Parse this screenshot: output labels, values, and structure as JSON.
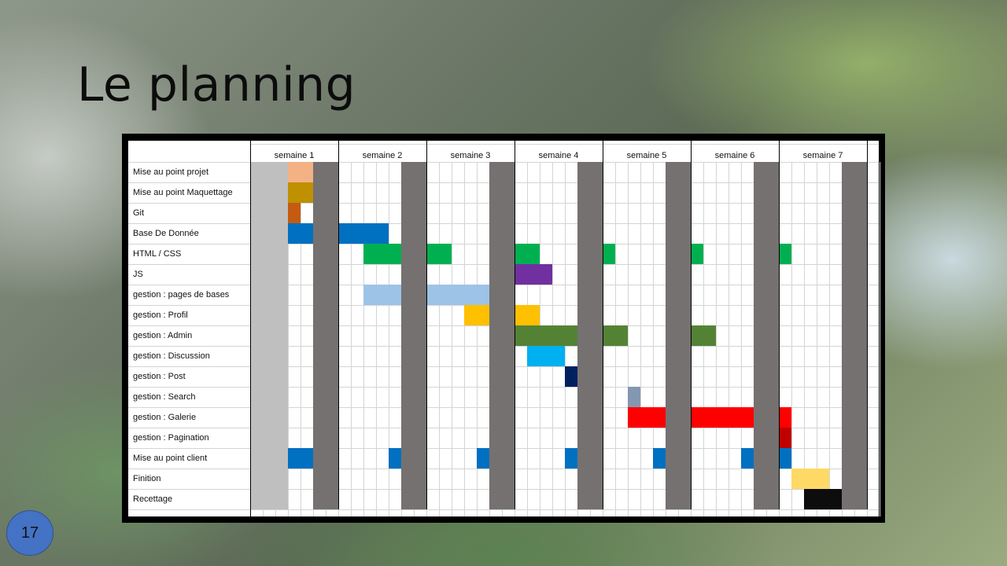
{
  "slide": {
    "title": "Le planning",
    "page_number": "17"
  },
  "chart_data": {
    "type": "gantt",
    "title": "Le planning",
    "unit": "day",
    "days_per_week": 7,
    "weeks": [
      "semaine 1",
      "semaine 2",
      "semaine 3",
      "semaine 4",
      "semaine 5",
      "semaine 6",
      "semaine 7"
    ],
    "weekend_days": [
      5,
      6
    ],
    "pre_project_days": [
      0,
      1,
      2
    ],
    "colors": {
      "weekend": "#757171",
      "pre_project": "#bfbfbf",
      "grid": "#d4d4d4"
    },
    "tasks": [
      {
        "name": "Mise au point projet",
        "color": "#f4b183",
        "segments": [
          [
            3,
            4
          ]
        ]
      },
      {
        "name": "Mise au point Maquettage",
        "color": "#bf9000",
        "segments": [
          [
            3,
            4
          ]
        ]
      },
      {
        "name": "Git",
        "color": "#c55a11",
        "segments": [
          [
            3,
            3
          ]
        ]
      },
      {
        "name": "Base De Donnée",
        "color": "#0070c0",
        "segments": [
          [
            3,
            4
          ],
          [
            7,
            10
          ]
        ]
      },
      {
        "name": "HTML / CSS",
        "color": "#00b050",
        "segments": [
          [
            9,
            11
          ],
          [
            14,
            15
          ],
          [
            21,
            22
          ],
          [
            28,
            28
          ],
          [
            35,
            35
          ],
          [
            42,
            42
          ]
        ]
      },
      {
        "name": "JS",
        "color": "#7030a0",
        "segments": [
          [
            21,
            23
          ]
        ]
      },
      {
        "name": "gestion  : pages de bases",
        "color": "#9dc3e6",
        "segments": [
          [
            9,
            11
          ],
          [
            14,
            18
          ]
        ]
      },
      {
        "name": "gestion  : Profil",
        "color": "#ffc000",
        "segments": [
          [
            17,
            18
          ],
          [
            21,
            22
          ]
        ]
      },
      {
        "name": "gestion  : Admin",
        "color": "#548235",
        "segments": [
          [
            21,
            25
          ],
          [
            28,
            29
          ],
          [
            35,
            36
          ]
        ]
      },
      {
        "name": "gestion  : Discussion",
        "color": "#00b0f0",
        "segments": [
          [
            22,
            24
          ]
        ]
      },
      {
        "name": "gestion  : Post",
        "color": "#002060",
        "segments": [
          [
            25,
            25
          ]
        ]
      },
      {
        "name": "gestion  : Search",
        "color": "#8497b0",
        "segments": [
          [
            30,
            30
          ]
        ]
      },
      {
        "name": "gestion  : Galerie",
        "color": "#ff0000",
        "segments": [
          [
            30,
            32
          ],
          [
            35,
            39
          ],
          [
            42,
            42
          ]
        ]
      },
      {
        "name": "gestion  : Pagination",
        "color": "#c00000",
        "segments": [
          [
            42,
            42
          ]
        ]
      },
      {
        "name": "Mise au point client",
        "color": "#0070c0",
        "segments": [
          [
            3,
            4
          ],
          [
            11,
            11
          ],
          [
            18,
            18
          ],
          [
            25,
            25
          ],
          [
            32,
            32
          ],
          [
            39,
            39
          ],
          [
            42,
            42
          ]
        ]
      },
      {
        "name": "Finition",
        "color": "#ffd966",
        "segments": [
          [
            43,
            45
          ]
        ]
      },
      {
        "name": "Recettage",
        "color": "#0d0d0d",
        "segments": [
          [
            44,
            46
          ]
        ]
      }
    ]
  }
}
